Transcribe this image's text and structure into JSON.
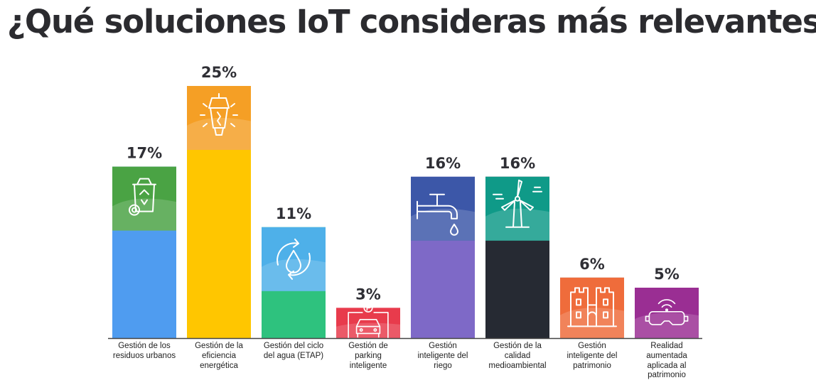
{
  "title": "¿Qué soluciones IoT consideras más relevantes?",
  "chart_data": {
    "type": "bar",
    "title": "¿Qué soluciones IoT consideras más relevantes?",
    "xlabel": "",
    "ylabel": "",
    "ylim": [
      0,
      25
    ],
    "categories": [
      "Gestión de los residuos urbanos",
      "Gestión de la eficiencia energética",
      "Gestión del ciclo del agua (ETAP)",
      "Gestión de parking inteligente",
      "Gestión inteligente del riego",
      "Gestión de la calidad medioambiental",
      "Gestión inteligente del patrimonio",
      "Realidad aumentada aplicada al patrimonio"
    ],
    "values": [
      17,
      25,
      11,
      3,
      16,
      16,
      6,
      5
    ],
    "value_labels": [
      "17%",
      "25%",
      "11%",
      "3%",
      "16%",
      "16%",
      "6%",
      "5%"
    ],
    "bar_colors": [
      "#4f9cf0",
      "#ffc600",
      "#2ec27e",
      "#fa5b8e",
      "#7e69c7",
      "#262a33",
      "#8d98a4",
      "#4b8ff0"
    ],
    "cap_colors": [
      "#4aa344",
      "#f59f25",
      "#4eb0e9",
      "#e83b4c",
      "#3c57a8",
      "#0f9a88",
      "#ef6c3b",
      "#9a2e93"
    ],
    "icons": [
      "recycle-bin-icon",
      "street-lamp-icon",
      "water-cycle-icon",
      "parking-car-icon",
      "faucet-icon",
      "wind-turbine-icon",
      "castle-icon",
      "vr-headset-icon"
    ]
  }
}
